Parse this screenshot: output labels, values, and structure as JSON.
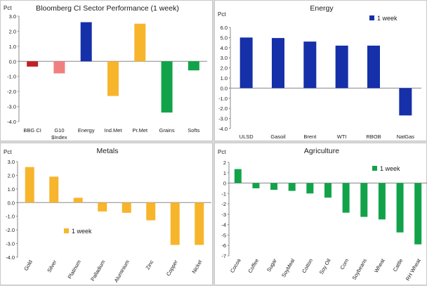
{
  "colors": {
    "red": "#c0202a",
    "pink": "#f08080",
    "navy": "#1530a8",
    "orange": "#f7b52c",
    "green": "#12a34a",
    "axis": "#888888"
  },
  "chart_data": [
    {
      "type": "bar",
      "title": "Bloomberg CI Sector Performance  (1 week)",
      "ylabel": "Pct",
      "ylim": [
        -4.0,
        3.0
      ],
      "yticks": [
        "3.0",
        "2.0",
        "1.0",
        "0.0",
        "-1.0",
        "-2.0",
        "-3.0",
        "-4.0"
      ],
      "categories": [
        "BBG CI",
        "G10\n$Index",
        "Energy",
        "Ind.Met",
        "Pr.Met",
        "Grains",
        "Softs"
      ],
      "values": [
        -0.35,
        -0.8,
        2.6,
        -2.3,
        2.5,
        -3.4,
        -0.6
      ],
      "bar_colors": [
        "red",
        "pink",
        "navy",
        "orange",
        "orange",
        "green",
        "green"
      ]
    },
    {
      "type": "bar",
      "title": "Energy",
      "ylabel": "Pct",
      "ylim": [
        -4.0,
        6.0
      ],
      "yticks": [
        "6.0",
        "5.0",
        "4.0",
        "3.0",
        "2.0",
        "1.0",
        "0.0",
        "-1.0",
        "-2.0",
        "-3.0",
        "-4.0"
      ],
      "categories": [
        "ULSD",
        "Gasoil",
        "Brent",
        "WTI",
        "RBOB",
        "NatGas"
      ],
      "series": [
        {
          "name": "1 week",
          "values": [
            5.0,
            4.95,
            4.6,
            4.2,
            4.2,
            -2.7
          ]
        }
      ],
      "legend": "top-right"
    },
    {
      "type": "bar",
      "title": "Metals",
      "ylabel": "Pct",
      "ylim": [
        -4.0,
        3.0
      ],
      "yticks": [
        "3.0",
        "2.0",
        "1.0",
        "0.0",
        "-1.0",
        "-2.0",
        "-3.0",
        "-4.0"
      ],
      "categories": [
        "Gold",
        "Silver",
        "Platinum",
        "Palladium",
        "Aluminium",
        "Zinc",
        "Copper",
        "Nickel"
      ],
      "series": [
        {
          "name": "1 week",
          "values": [
            2.6,
            1.9,
            0.35,
            -0.65,
            -0.75,
            -1.3,
            -3.1,
            -3.1
          ]
        }
      ],
      "legend": "center-left"
    },
    {
      "type": "bar",
      "title": "Agriculture",
      "ylabel": "Pct",
      "ylim": [
        -7,
        2
      ],
      "yticks": [
        "2",
        "1",
        "0",
        "-1",
        "-2",
        "-3",
        "-4",
        "-5",
        "-6",
        "-7"
      ],
      "categories": [
        "Cocoa",
        "Coffee",
        "Sugar",
        "SoyMeal",
        "Cotton",
        "Soy Oil",
        "Corn",
        "Soybeans",
        "Wheat",
        "Cattle",
        "RH Wheat"
      ],
      "series": [
        {
          "name": "1 week",
          "values": [
            1.35,
            -0.5,
            -0.65,
            -0.75,
            -1.0,
            -1.4,
            -2.85,
            -3.25,
            -3.5,
            -4.75,
            -5.9
          ]
        }
      ],
      "legend": "top-center"
    }
  ]
}
